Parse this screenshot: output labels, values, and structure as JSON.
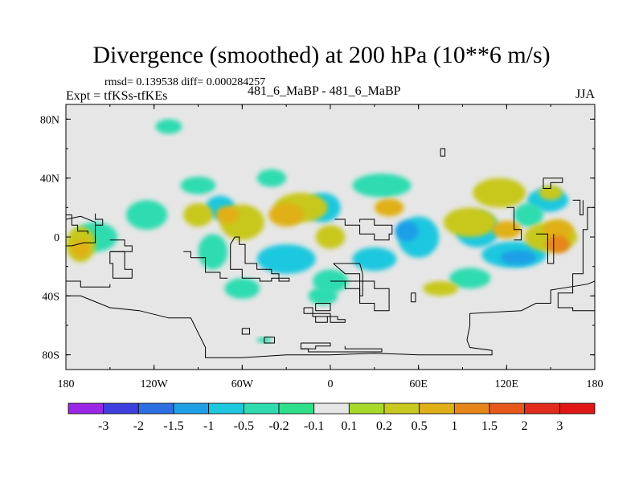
{
  "chart_data": {
    "type": "heatmap",
    "title": "Divergence (smoothed) at 200 hPa (10**6 m/s)",
    "stats": "rmsd= 0.139538 diff= 0.000284257",
    "experiment": "Expt = tfKSs-tfKEs",
    "runs": "481_6_MaBP - 481_6_MaBP",
    "season": "JJA",
    "x_range": [
      -180,
      180
    ],
    "y_range": [
      -90,
      90
    ],
    "x_ticks": [
      {
        "value": -180,
        "label": "180"
      },
      {
        "value": -120,
        "label": "120W"
      },
      {
        "value": -60,
        "label": "60W"
      },
      {
        "value": 0,
        "label": "0"
      },
      {
        "value": 60,
        "label": "60E"
      },
      {
        "value": 120,
        "label": "120E"
      },
      {
        "value": 180,
        "label": "180"
      }
    ],
    "y_ticks": [
      {
        "value": 80,
        "label": "80N"
      },
      {
        "value": 40,
        "label": "40N"
      },
      {
        "value": 0,
        "label": "0"
      },
      {
        "value": -40,
        "label": "40S"
      },
      {
        "value": -80,
        "label": "80S"
      }
    ],
    "colorbar": {
      "labels": [
        "-3",
        "-2",
        "-1.5",
        "-1",
        "-0.5",
        "-0.2",
        "-0.1",
        "0.1",
        "0.2",
        "0.5",
        "1",
        "1.5",
        "2",
        "3"
      ],
      "colors": [
        "#9b26e6",
        "#3f3fe0",
        "#2c6fe3",
        "#1f9fe6",
        "#1fc8df",
        "#2fdcb0",
        "#2fe08a",
        "#e6e6e6",
        "#a8d92a",
        "#c8c81f",
        "#e0b019",
        "#e6861a",
        "#e6591b",
        "#e32b1d",
        "#e01616"
      ]
    },
    "features": [
      {
        "lon": 60,
        "lat": 0,
        "rx": 14,
        "ry": 14,
        "level": -0.5
      },
      {
        "lon": 52,
        "lat": 4,
        "rx": 8,
        "ry": 7,
        "level": -1
      },
      {
        "lon": 100,
        "lat": 5,
        "rx": 15,
        "ry": 12,
        "level": -0.5
      },
      {
        "lon": 125,
        "lat": -12,
        "rx": 22,
        "ry": 9,
        "level": -0.5
      },
      {
        "lon": 128,
        "lat": -14,
        "rx": 12,
        "ry": 5,
        "level": -1
      },
      {
        "lon": -30,
        "lat": -15,
        "rx": 20,
        "ry": 10,
        "level": -0.5
      },
      {
        "lon": 30,
        "lat": -15,
        "rx": 15,
        "ry": 8,
        "level": -0.5
      },
      {
        "lon": -75,
        "lat": 20,
        "rx": 10,
        "ry": 8,
        "level": -0.5
      },
      {
        "lon": -5,
        "lat": 20,
        "rx": 12,
        "ry": 10,
        "level": -0.5
      },
      {
        "lon": 148,
        "lat": 25,
        "rx": 14,
        "ry": 8,
        "level": -0.5
      },
      {
        "lon": -125,
        "lat": 15,
        "rx": 14,
        "ry": 10,
        "level": -0.2
      },
      {
        "lon": -90,
        "lat": 35,
        "rx": 12,
        "ry": 6,
        "level": -0.2
      },
      {
        "lon": -40,
        "lat": 40,
        "rx": 10,
        "ry": 6,
        "level": -0.2
      },
      {
        "lon": 35,
        "lat": 35,
        "rx": 20,
        "ry": 8,
        "level": -0.2
      },
      {
        "lon": -160,
        "lat": 0,
        "rx": 15,
        "ry": 10,
        "level": -0.2
      },
      {
        "lon": -60,
        "lat": -35,
        "rx": 12,
        "ry": 7,
        "level": -0.2
      },
      {
        "lon": -80,
        "lat": -10,
        "rx": 10,
        "ry": 12,
        "level": -0.2
      },
      {
        "lon": 135,
        "lat": 15,
        "rx": 10,
        "ry": 8,
        "level": -0.2
      },
      {
        "lon": -5,
        "lat": -40,
        "rx": 10,
        "ry": 6,
        "level": -0.2
      },
      {
        "lon": 95,
        "lat": -28,
        "rx": 14,
        "ry": 7,
        "level": -0.2
      },
      {
        "lon": -110,
        "lat": 75,
        "rx": 9,
        "ry": 5,
        "level": -0.2
      },
      {
        "lon": -45,
        "lat": -70,
        "rx": 5,
        "ry": 2,
        "level": -0.2
      },
      {
        "lon": 0,
        "lat": -30,
        "rx": 12,
        "ry": 8,
        "level": -0.2
      },
      {
        "lon": 95,
        "lat": 10,
        "rx": 18,
        "ry": 10,
        "level": 0.2
      },
      {
        "lon": -20,
        "lat": 20,
        "rx": 18,
        "ry": 10,
        "level": 0.2
      },
      {
        "lon": -60,
        "lat": 10,
        "rx": 15,
        "ry": 12,
        "level": 0.2
      },
      {
        "lon": 115,
        "lat": 30,
        "rx": 18,
        "ry": 10,
        "level": 0.2
      },
      {
        "lon": 150,
        "lat": 0,
        "rx": 18,
        "ry": 10,
        "level": 0.2
      },
      {
        "lon": -170,
        "lat": -5,
        "rx": 10,
        "ry": 12,
        "level": 0.2
      },
      {
        "lon": -90,
        "lat": 15,
        "rx": 10,
        "ry": 8,
        "level": 0.2
      },
      {
        "lon": 0,
        "lat": 0,
        "rx": 10,
        "ry": 8,
        "level": 0.2
      },
      {
        "lon": 150,
        "lat": 30,
        "rx": 8,
        "ry": 5,
        "level": 0.2
      },
      {
        "lon": 75,
        "lat": -35,
        "rx": 12,
        "ry": 5,
        "level": 0.2
      },
      {
        "lon": -30,
        "lat": 15,
        "rx": 12,
        "ry": 8,
        "level": 0.5
      },
      {
        "lon": 155,
        "lat": 5,
        "rx": 10,
        "ry": 7,
        "level": 0.5
      },
      {
        "lon": 155,
        "lat": -5,
        "rx": 8,
        "ry": 6,
        "level": 1
      },
      {
        "lon": 120,
        "lat": 5,
        "rx": 10,
        "ry": 6,
        "level": 0.5
      },
      {
        "lon": -70,
        "lat": 15,
        "rx": 8,
        "ry": 6,
        "level": 0.5
      },
      {
        "lon": 40,
        "lat": 20,
        "rx": 10,
        "ry": 6,
        "level": 0.5
      },
      {
        "lon": -170,
        "lat": -8,
        "rx": 6,
        "ry": 6,
        "level": 0.5
      }
    ],
    "coastlines": [
      [
        [
          -180,
          12
        ],
        [
          -170,
          14
        ],
        [
          -160,
          10
        ],
        [
          -160,
          -4
        ],
        [
          -168,
          -4
        ],
        [
          -176,
          -6
        ],
        [
          -180,
          -6
        ]
      ],
      [
        [
          -150,
          -10
        ],
        [
          -140,
          -10
        ],
        [
          -140,
          -22
        ],
        [
          -135,
          -22
        ],
        [
          -135,
          -28
        ],
        [
          -148,
          -28
        ],
        [
          -148,
          -18
        ],
        [
          -150,
          -18
        ],
        [
          -150,
          -10
        ]
      ],
      [
        [
          -180,
          -40
        ],
        [
          -170,
          -40
        ],
        [
          -150,
          -48
        ],
        [
          -130,
          -50
        ],
        [
          -110,
          -55
        ],
        [
          -95,
          -55
        ],
        [
          -90,
          -65
        ],
        [
          -85,
          -75
        ],
        [
          -85,
          -82
        ],
        [
          -60,
          -82
        ],
        [
          -30,
          -80
        ],
        [
          0,
          -80
        ],
        [
          30,
          -79
        ],
        [
          60,
          -80
        ],
        [
          90,
          -80
        ],
        [
          110,
          -80
        ],
        [
          110,
          -77
        ],
        [
          95,
          -75
        ],
        [
          93,
          -70
        ],
        [
          95,
          -60
        ],
        [
          95,
          -52
        ],
        [
          130,
          -50
        ],
        [
          140,
          -45
        ],
        [
          150,
          -45
        ],
        [
          150,
          -36
        ],
        [
          175,
          -32
        ],
        [
          180,
          -30
        ]
      ],
      [
        [
          -65,
          0
        ],
        [
          -62,
          0
        ],
        [
          -62,
          -5
        ],
        [
          -58,
          -5
        ],
        [
          -58,
          -18
        ],
        [
          -50,
          -18
        ],
        [
          -50,
          -22
        ],
        [
          -40,
          -22
        ],
        [
          -40,
          -25
        ],
        [
          -35,
          -25
        ],
        [
          -35,
          -30
        ],
        [
          -28,
          -30
        ],
        [
          -28,
          -28
        ],
        [
          -40,
          -28
        ],
        [
          -40,
          -30
        ],
        [
          -48,
          -30
        ],
        [
          -48,
          -28
        ],
        [
          -60,
          -28
        ],
        [
          -60,
          -22
        ],
        [
          -68,
          -22
        ],
        [
          -68,
          -5
        ],
        [
          -65,
          0
        ]
      ],
      [
        [
          0,
          -30
        ],
        [
          10,
          -30
        ],
        [
          10,
          -35
        ],
        [
          20,
          -35
        ],
        [
          20,
          -45
        ],
        [
          30,
          -45
        ],
        [
          30,
          -50
        ],
        [
          40,
          -50
        ],
        [
          40,
          -35
        ],
        [
          30,
          -35
        ],
        [
          30,
          -30
        ],
        [
          0,
          -30
        ]
      ],
      [
        [
          -10,
          -45
        ],
        [
          0,
          -45
        ],
        [
          0,
          -50
        ],
        [
          -10,
          -50
        ],
        [
          -10,
          -45
        ]
      ],
      [
        [
          -18,
          -48
        ],
        [
          -18,
          -52
        ],
        [
          0,
          -52
        ],
        [
          0,
          -58
        ],
        [
          10,
          -58
        ],
        [
          10,
          -56
        ],
        [
          5,
          -56
        ],
        [
          5,
          -54
        ],
        [
          -12,
          -54
        ],
        [
          -12,
          -48
        ],
        [
          -18,
          -48
        ]
      ],
      [
        [
          -10,
          -54
        ],
        [
          -10,
          -58
        ],
        [
          -2,
          -58
        ],
        [
          -2,
          -54
        ]
      ],
      [
        [
          2,
          -18
        ],
        [
          20,
          -18
        ],
        [
          22,
          -25
        ],
        [
          22,
          -40
        ],
        [
          20,
          -40
        ],
        [
          20,
          -25
        ],
        [
          10,
          -25
        ],
        [
          2,
          -18
        ]
      ],
      [
        [
          -45,
          -68
        ],
        [
          -38,
          -68
        ],
        [
          -38,
          -72
        ],
        [
          -45,
          -72
        ],
        [
          -45,
          -68
        ]
      ],
      [
        [
          -60,
          -62
        ],
        [
          -55,
          -62
        ],
        [
          -55,
          -66
        ],
        [
          -60,
          -66
        ],
        [
          -60,
          -62
        ]
      ],
      [
        [
          -20,
          -72
        ],
        [
          0,
          -72
        ],
        [
          0,
          -74
        ],
        [
          -10,
          -74
        ],
        [
          -10,
          -76
        ],
        [
          -20,
          -76
        ],
        [
          -20,
          -72
        ]
      ],
      [
        [
          -20,
          -76
        ],
        [
          -15,
          -76
        ],
        [
          -15,
          -78
        ],
        [
          35,
          -78
        ],
        [
          35,
          -76
        ],
        [
          10,
          -76
        ],
        [
          10,
          -74
        ]
      ],
      [
        [
          3,
          12
        ],
        [
          10,
          12
        ],
        [
          10,
          8
        ],
        [
          20,
          8
        ],
        [
          20,
          2
        ],
        [
          30,
          2
        ],
        [
          30,
          -2
        ],
        [
          40,
          -2
        ],
        [
          40,
          2
        ],
        [
          42,
          2
        ],
        [
          42,
          8
        ],
        [
          30,
          8
        ],
        [
          30,
          12
        ],
        [
          20,
          12
        ],
        [
          20,
          10
        ]
      ],
      [
        [
          -180,
          15
        ],
        [
          -176,
          15
        ],
        [
          -176,
          8
        ],
        [
          -172,
          8
        ],
        [
          -172,
          4
        ],
        [
          -165,
          4
        ],
        [
          -165,
          2
        ]
      ],
      [
        [
          -150,
          -2
        ],
        [
          -140,
          -2
        ],
        [
          -140,
          -6
        ],
        [
          -135,
          -6
        ],
        [
          -135,
          -10
        ],
        [
          -150,
          -10
        ]
      ],
      [
        [
          -160,
          16
        ],
        [
          -160,
          12
        ],
        [
          -155,
          12
        ],
        [
          -155,
          8
        ],
        [
          -160,
          8
        ]
      ],
      [
        [
          -100,
          -10
        ],
        [
          -95,
          -10
        ],
        [
          -95,
          -14
        ],
        [
          -85,
          -14
        ],
        [
          -85,
          -24
        ],
        [
          -75,
          -24
        ],
        [
          -75,
          -28
        ],
        [
          -70,
          -28
        ]
      ],
      [
        [
          55,
          -38
        ],
        [
          58,
          -38
        ],
        [
          58,
          -44
        ],
        [
          55,
          -44
        ],
        [
          55,
          -38
        ]
      ],
      [
        [
          75,
          60
        ],
        [
          78,
          60
        ],
        [
          78,
          55
        ],
        [
          75,
          55
        ],
        [
          75,
          60
        ]
      ],
      [
        [
          140,
          2
        ],
        [
          148,
          2
        ],
        [
          148,
          -18
        ],
        [
          152,
          -18
        ],
        [
          152,
          2
        ]
      ],
      [
        [
          165,
          25
        ],
        [
          170,
          25
        ],
        [
          170,
          15
        ],
        [
          172,
          15
        ],
        [
          172,
          25
        ]
      ],
      [
        [
          145,
          40
        ],
        [
          145,
          33
        ],
        [
          150,
          33
        ],
        [
          150,
          37
        ],
        [
          158,
          37
        ],
        [
          158,
          40
        ],
        [
          145,
          40
        ]
      ],
      [
        [
          180,
          20
        ],
        [
          175,
          20
        ],
        [
          175,
          5
        ],
        [
          172,
          5
        ],
        [
          172,
          -25
        ],
        [
          165,
          -25
        ],
        [
          165,
          -38
        ],
        [
          155,
          -38
        ],
        [
          155,
          -48
        ],
        [
          165,
          -48
        ],
        [
          165,
          -50
        ],
        [
          180,
          -50
        ]
      ],
      [
        [
          120,
          20
        ],
        [
          125,
          20
        ],
        [
          125,
          5
        ],
        [
          130,
          5
        ],
        [
          130,
          -2
        ],
        [
          125,
          -2
        ]
      ],
      [
        [
          -180,
          -30
        ],
        [
          -170,
          -30
        ],
        [
          -170,
          -34
        ],
        [
          -150,
          -34
        ],
        [
          -150,
          -32
        ]
      ]
    ]
  }
}
